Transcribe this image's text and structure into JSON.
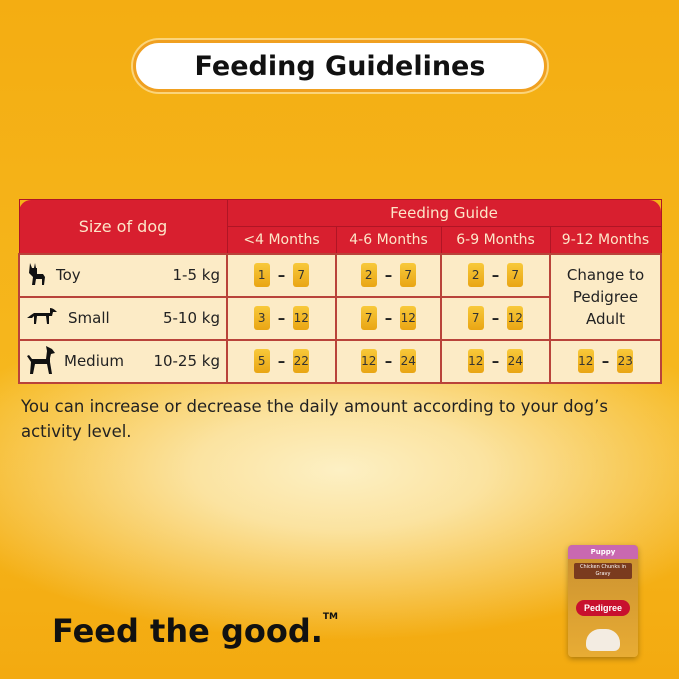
{
  "title": "Feeding Guidelines",
  "table": {
    "size_header": "Size of dog",
    "guide_header": "Feeding Guide",
    "columns": [
      "<4 Months",
      "4-6 Months",
      "6-9 Months",
      "9-12 Months"
    ],
    "rows": [
      {
        "icon": "toy-dog-icon",
        "size": "Toy",
        "weight": "1-5 kg",
        "cells": [
          [
            "1",
            "7"
          ],
          [
            "2",
            "7"
          ],
          [
            "2",
            "7"
          ]
        ],
        "last": "Change to Pedigree Adult"
      },
      {
        "icon": "small-dog-icon",
        "size": "Small",
        "weight": "5-10 kg",
        "cells": [
          [
            "3",
            "12"
          ],
          [
            "7",
            "12"
          ],
          [
            "7",
            "12"
          ]
        ]
      },
      {
        "icon": "medium-dog-icon",
        "size": "Medium",
        "weight": "10-25 kg",
        "cells": [
          [
            "5",
            "22"
          ],
          [
            "12",
            "24"
          ],
          [
            "12",
            "24"
          ],
          [
            "12",
            "23"
          ]
        ]
      }
    ],
    "dash": "–"
  },
  "note": "You can increase or decrease the daily amount according to your dog’s activity level.",
  "tagline": "Feed the good.",
  "trademark": "TM",
  "product": {
    "brand": "Pedigree",
    "variant": "Chicken Chunks in Gravy",
    "label": "Puppy"
  }
}
